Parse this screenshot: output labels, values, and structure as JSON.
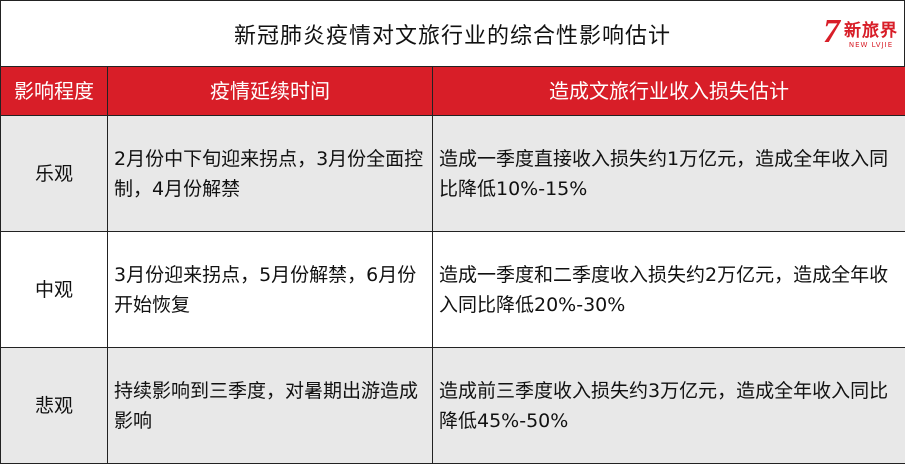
{
  "title": "新冠肺炎疫情对文旅行业的综合性影响估计",
  "logo": {
    "mark": "7",
    "cn": "新旅界",
    "en": "NEW LVJIE"
  },
  "headers": [
    "影响程度",
    "疫情延续时间",
    "造成文旅行业收入损失估计"
  ],
  "rows": [
    {
      "level": "乐观",
      "duration": "2月份中下旬迎来拐点，3月份全面控制，4月份解禁",
      "loss": "造成一季度直接收入损失约1万亿元，造成全年收入同比降低10%-15%"
    },
    {
      "level": "中观",
      "duration": "3月份迎来拐点，5月份解禁，6月份开始恢复",
      "loss": "造成一季度和二季度收入损失约2万亿元，造成全年收入同比降低20%-30%"
    },
    {
      "level": "悲观",
      "duration": "持续影响到三季度，对暑期出游造成影响",
      "loss": "造成前三季度收入损失约3万亿元，造成全年收入同比降低45%-50%"
    }
  ],
  "colors": {
    "header": "#d81e28",
    "row_alt": "#e8e8e8"
  }
}
